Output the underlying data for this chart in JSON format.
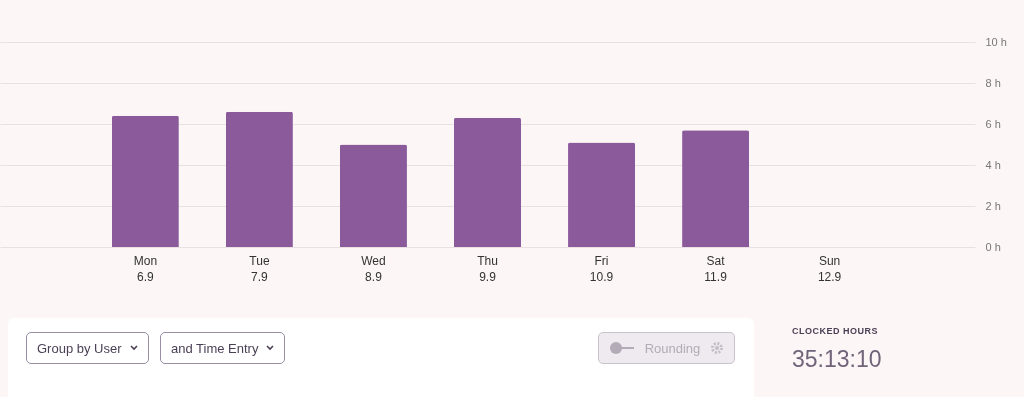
{
  "chart_data": {
    "type": "bar",
    "categories": [
      "Mon\n6.9",
      "Tue\n7.9",
      "Wed\n8.9",
      "Thu\n9.9",
      "Fri\n10.9",
      "Sat\n11.9",
      "Sun\n12.9"
    ],
    "values": [
      6.4,
      6.6,
      5.0,
      6.3,
      5.1,
      5.7,
      0
    ],
    "color": "#8a5a9b",
    "ylim": [
      0,
      10
    ],
    "yticks": [
      {
        "value": 0,
        "label": "0 h"
      },
      {
        "value": 2,
        "label": "2 h"
      },
      {
        "value": 4,
        "label": "4 h"
      },
      {
        "value": 6,
        "label": "6 h"
      },
      {
        "value": 8,
        "label": "8 h"
      },
      {
        "value": 10,
        "label": "10 h"
      }
    ],
    "grid": "y",
    "annotations": [
      "Group by User",
      "and Time Entry",
      "Rounding",
      "CLOCKED HOURS",
      "35:13:10"
    ]
  }
}
